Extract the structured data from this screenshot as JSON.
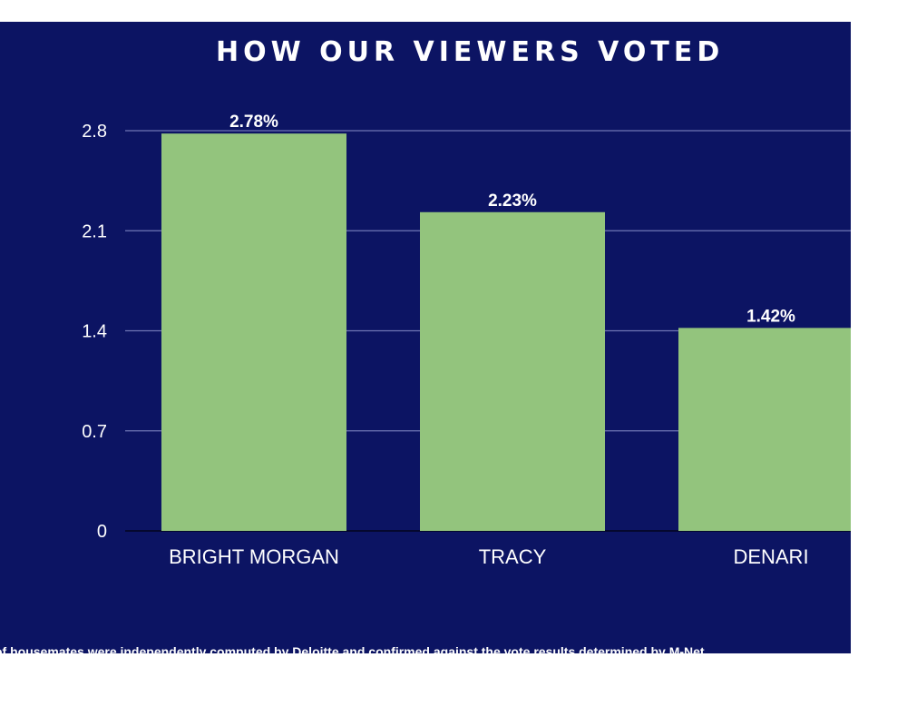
{
  "chart_data": {
    "type": "bar",
    "title": "HOW OUR VIEWERS VOTED",
    "categories": [
      "BRIGHT MORGAN",
      "TRACY",
      "DENARI"
    ],
    "values": [
      2.78,
      2.23,
      1.42
    ],
    "data_labels": [
      "2.78%",
      "2.23%",
      "1.42%"
    ],
    "yticks": [
      "0",
      "0.7",
      "1.4",
      "2.1",
      "2.8"
    ],
    "ylim": [
      0,
      2.8
    ],
    "grid": true,
    "legend": "none",
    "colors": {
      "background": "#0c1463",
      "bar": "#93c47d",
      "grid": "#6f76b5",
      "text": "#ffffff"
    }
  },
  "footnote": "of housemates were independently computed by Deloitte and confirmed against the vote results determined by M-Net"
}
